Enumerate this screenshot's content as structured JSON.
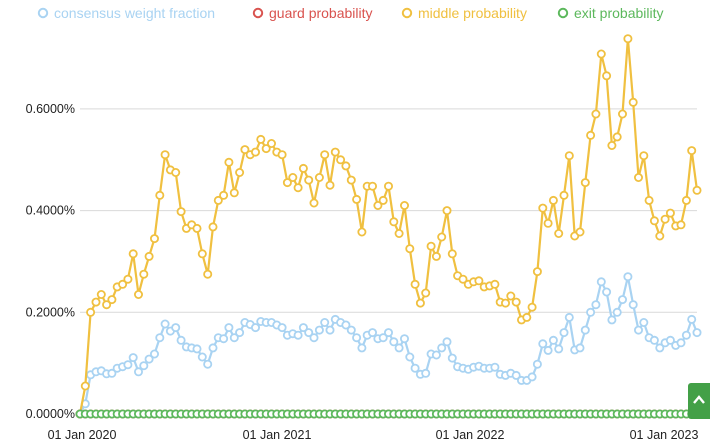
{
  "chart_data": {
    "type": "line",
    "legend": [
      {
        "name": "consensus weight fraction",
        "color": "#a9d3f2"
      },
      {
        "name": "guard probability",
        "color": "#d9534f"
      },
      {
        "name": "middle probability",
        "color": "#f0c040"
      },
      {
        "name": "exit probability",
        "color": "#5cb85c"
      }
    ],
    "legend_placement": "top",
    "x_ticks": [
      "01 Jan 2020",
      "01 Jan 2021",
      "01 Jan 2022",
      "01 Jan 2023"
    ],
    "y_ticks": [
      "0.0000%",
      "0.2000%",
      "0.4000%",
      "0.6000%"
    ],
    "ylim": [
      0,
      0.75
    ],
    "grid": true,
    "series": [
      {
        "name": "consensus weight fraction",
        "color": "#a9d3f2",
        "values": [
          0.0,
          0.02,
          0.077,
          0.083,
          0.085,
          0.079,
          0.08,
          0.09,
          0.093,
          0.097,
          0.111,
          0.083,
          0.095,
          0.108,
          0.118,
          0.15,
          0.177,
          0.163,
          0.17,
          0.145,
          0.132,
          0.13,
          0.128,
          0.112,
          0.098,
          0.13,
          0.15,
          0.148,
          0.17,
          0.15,
          0.16,
          0.18,
          0.176,
          0.17,
          0.182,
          0.18,
          0.18,
          0.175,
          0.17,
          0.155,
          0.158,
          0.155,
          0.17,
          0.16,
          0.15,
          0.165,
          0.18,
          0.165,
          0.186,
          0.18,
          0.175,
          0.165,
          0.15,
          0.13,
          0.155,
          0.16,
          0.148,
          0.15,
          0.16,
          0.142,
          0.13,
          0.148,
          0.112,
          0.09,
          0.078,
          0.08,
          0.118,
          0.116,
          0.13,
          0.142,
          0.11,
          0.093,
          0.09,
          0.088,
          0.092,
          0.094,
          0.09,
          0.09,
          0.092,
          0.078,
          0.076,
          0.08,
          0.076,
          0.066,
          0.066,
          0.073,
          0.098,
          0.138,
          0.125,
          0.145,
          0.128,
          0.16,
          0.19,
          0.126,
          0.13,
          0.165,
          0.2,
          0.215,
          0.26,
          0.24,
          0.185,
          0.2,
          0.225,
          0.27,
          0.215,
          0.165,
          0.18,
          0.15,
          0.145,
          0.13,
          0.14,
          0.145,
          0.135,
          0.14,
          0.155,
          0.186,
          0.16
        ]
      },
      {
        "name": "middle probability",
        "color": "#f0c040",
        "values": [
          0.0,
          0.055,
          0.2,
          0.22,
          0.235,
          0.215,
          0.225,
          0.25,
          0.255,
          0.265,
          0.315,
          0.235,
          0.275,
          0.31,
          0.345,
          0.43,
          0.51,
          0.48,
          0.475,
          0.398,
          0.365,
          0.372,
          0.365,
          0.315,
          0.275,
          0.368,
          0.42,
          0.43,
          0.495,
          0.435,
          0.475,
          0.52,
          0.51,
          0.515,
          0.54,
          0.522,
          0.532,
          0.515,
          0.51,
          0.455,
          0.465,
          0.445,
          0.483,
          0.46,
          0.415,
          0.465,
          0.51,
          0.45,
          0.515,
          0.5,
          0.488,
          0.46,
          0.422,
          0.358,
          0.448,
          0.448,
          0.41,
          0.42,
          0.448,
          0.378,
          0.355,
          0.41,
          0.325,
          0.255,
          0.218,
          0.238,
          0.33,
          0.31,
          0.348,
          0.4,
          0.315,
          0.272,
          0.265,
          0.255,
          0.26,
          0.262,
          0.25,
          0.252,
          0.255,
          0.22,
          0.218,
          0.232,
          0.22,
          0.185,
          0.19,
          0.21,
          0.28,
          0.405,
          0.375,
          0.42,
          0.355,
          0.43,
          0.508,
          0.35,
          0.358,
          0.455,
          0.548,
          0.59,
          0.708,
          0.665,
          0.528,
          0.545,
          0.59,
          0.738,
          0.613,
          0.465,
          0.508,
          0.42,
          0.38,
          0.35,
          0.383,
          0.395,
          0.37,
          0.372,
          0.42,
          0.518,
          0.44
        ]
      },
      {
        "name": "guard probability",
        "color": "#d9534f",
        "values": [
          0,
          0,
          0,
          0,
          0,
          0,
          0,
          0,
          0,
          0,
          0,
          0,
          0,
          0,
          0,
          0,
          0,
          0,
          0,
          0,
          0,
          0,
          0,
          0,
          0,
          0,
          0,
          0,
          0,
          0,
          0,
          0,
          0,
          0,
          0,
          0,
          0,
          0,
          0,
          0,
          0,
          0,
          0,
          0,
          0,
          0,
          0,
          0,
          0,
          0,
          0,
          0,
          0,
          0,
          0,
          0,
          0,
          0,
          0,
          0,
          0,
          0,
          0,
          0,
          0,
          0,
          0,
          0,
          0,
          0,
          0,
          0,
          0,
          0,
          0,
          0,
          0,
          0,
          0,
          0,
          0,
          0,
          0,
          0,
          0,
          0,
          0,
          0,
          0,
          0,
          0,
          0,
          0,
          0,
          0,
          0,
          0,
          0,
          0,
          0,
          0,
          0,
          0,
          0,
          0,
          0,
          0,
          0,
          0,
          0,
          0,
          0,
          0,
          0,
          0,
          0,
          0
        ]
      },
      {
        "name": "exit probability",
        "color": "#5cb85c",
        "values": [
          0,
          0,
          0,
          0,
          0,
          0,
          0,
          0,
          0,
          0,
          0,
          0,
          0,
          0,
          0,
          0,
          0,
          0,
          0,
          0,
          0,
          0,
          0,
          0,
          0,
          0,
          0,
          0,
          0,
          0,
          0,
          0,
          0,
          0,
          0,
          0,
          0,
          0,
          0,
          0,
          0,
          0,
          0,
          0,
          0,
          0,
          0,
          0,
          0,
          0,
          0,
          0,
          0,
          0,
          0,
          0,
          0,
          0,
          0,
          0,
          0,
          0,
          0,
          0,
          0,
          0,
          0,
          0,
          0,
          0,
          0,
          0,
          0,
          0,
          0,
          0,
          0,
          0,
          0,
          0,
          0,
          0,
          0,
          0,
          0,
          0,
          0,
          0,
          0,
          0,
          0,
          0,
          0,
          0,
          0,
          0,
          0,
          0,
          0,
          0,
          0,
          0,
          0,
          0,
          0,
          0,
          0,
          0,
          0,
          0,
          0,
          0,
          0,
          0,
          0,
          0,
          0
        ]
      }
    ]
  },
  "scroll_button": {
    "icon": "chevron-up-icon",
    "color": "#43a047"
  }
}
